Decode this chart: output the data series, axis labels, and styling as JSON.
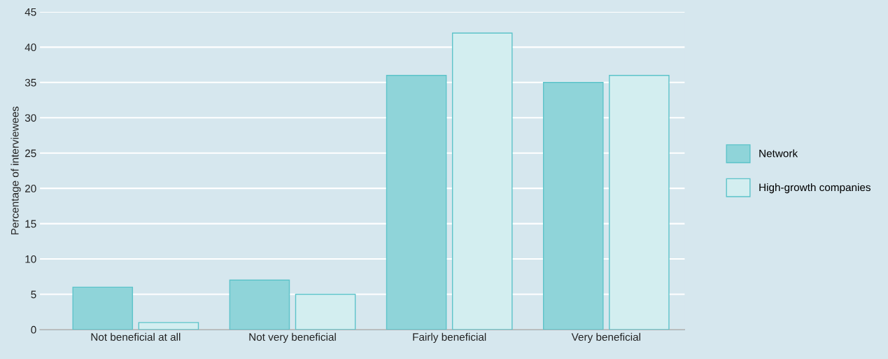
{
  "chart_data": {
    "type": "bar",
    "ylabel": "Percentage of interviewees",
    "categories": [
      "Not beneficial at all",
      "Not very beneficial",
      "Fairly beneficial",
      "Very beneficial"
    ],
    "series": [
      {
        "name": "Network",
        "color": "#8fd4d9",
        "values": [
          6,
          7,
          36,
          35
        ]
      },
      {
        "name": "High-growth companies",
        "color": "#d3eef0",
        "values": [
          1,
          5,
          42,
          36
        ]
      }
    ],
    "ylim": [
      0,
      45
    ],
    "yticks": [
      0,
      5,
      10,
      15,
      20,
      25,
      30,
      35,
      40,
      45
    ],
    "grid": "y",
    "legend": "right"
  }
}
